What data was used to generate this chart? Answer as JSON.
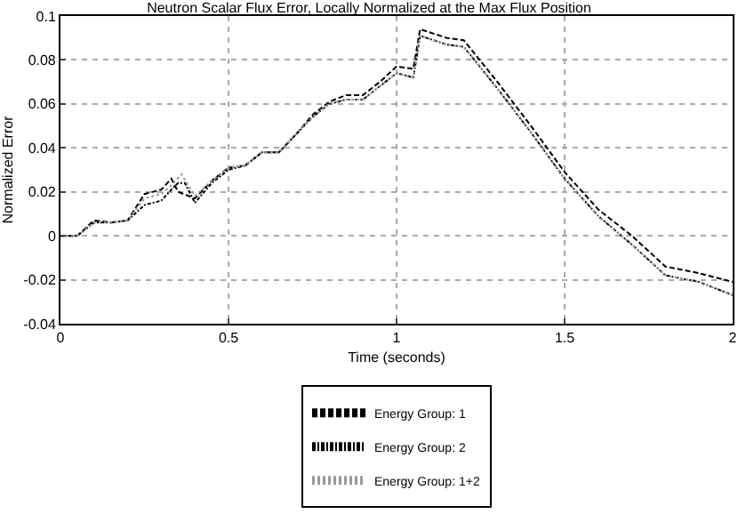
{
  "chart_data": {
    "type": "line",
    "title": "Neutron Scalar Flux Error, Locally Normalized at the Max Flux Position",
    "xlabel": "Time (seconds)",
    "ylabel": "Normalized Error",
    "xlim": [
      0,
      2
    ],
    "xticks": [
      0,
      0.5,
      1,
      1.5,
      2
    ],
    "ylim": [
      -0.04,
      0.1
    ],
    "yticks": [
      -0.04,
      -0.02,
      0,
      0.02,
      0.04,
      0.06,
      0.08,
      0.1
    ],
    "grid": true,
    "legend": "bottom",
    "marker": "none",
    "series": [
      {
        "name": "Energy Group: 1",
        "color": "#000000",
        "line_style": "dashed",
        "x": [
          0,
          0.05,
          0.1,
          0.15,
          0.2,
          0.25,
          0.3,
          0.33,
          0.35,
          0.4,
          0.45,
          0.5,
          0.55,
          0.6,
          0.65,
          0.7,
          0.75,
          0.8,
          0.85,
          0.9,
          0.95,
          1.0,
          1.05,
          1.07,
          1.15,
          1.2,
          1.3,
          1.4,
          1.5,
          1.6,
          1.7,
          1.8,
          1.9,
          2.0
        ],
        "values": [
          0,
          0,
          0.007,
          0.006,
          0.007,
          0.019,
          0.021,
          0.026,
          0.02,
          0.017,
          0.025,
          0.031,
          0.032,
          0.038,
          0.038,
          0.046,
          0.055,
          0.061,
          0.064,
          0.064,
          0.07,
          0.077,
          0.076,
          0.094,
          0.09,
          0.089,
          0.07,
          0.05,
          0.029,
          0.012,
          0,
          -0.014,
          -0.017,
          -0.021
        ]
      },
      {
        "name": "Energy Group: 2",
        "color": "#000000",
        "line_style": "dashed",
        "x": [
          0,
          0.05,
          0.1,
          0.15,
          0.2,
          0.25,
          0.3,
          0.33,
          0.35,
          0.37,
          0.4,
          0.45,
          0.5,
          0.55,
          0.6,
          0.65,
          0.7,
          0.75,
          0.8,
          0.85,
          0.9,
          0.95,
          1.0,
          1.05,
          1.07,
          1.15,
          1.2,
          1.3,
          1.4,
          1.5,
          1.6,
          1.7,
          1.8,
          1.9,
          2.0
        ],
        "values": [
          0,
          0,
          0.006,
          0.006,
          0.007,
          0.014,
          0.016,
          0.021,
          0.024,
          0.024,
          0.015,
          0.024,
          0.03,
          0.032,
          0.038,
          0.038,
          0.046,
          0.054,
          0.06,
          0.062,
          0.062,
          0.068,
          0.074,
          0.072,
          0.091,
          0.087,
          0.086,
          0.067,
          0.047,
          0.026,
          0.009,
          -0.004,
          -0.018,
          -0.021,
          -0.027
        ]
      },
      {
        "name": "Energy Group: 1+2",
        "color": "#999999",
        "line_style": "dotted",
        "x": [
          0,
          0.05,
          0.1,
          0.15,
          0.2,
          0.25,
          0.3,
          0.33,
          0.36,
          0.4,
          0.45,
          0.5,
          0.55,
          0.6,
          0.65,
          0.7,
          0.75,
          0.8,
          0.85,
          0.9,
          0.95,
          1.0,
          1.05,
          1.07,
          1.15,
          1.2,
          1.3,
          1.4,
          1.5,
          1.6,
          1.7,
          1.8,
          1.9,
          2.0
        ],
        "values": [
          0,
          0,
          0.006,
          0.006,
          0.007,
          0.017,
          0.019,
          0.023,
          0.028,
          0.018,
          0.025,
          0.031,
          0.032,
          0.038,
          0.038,
          0.046,
          0.054,
          0.06,
          0.062,
          0.062,
          0.068,
          0.074,
          0.072,
          0.091,
          0.087,
          0.086,
          0.067,
          0.047,
          0.026,
          0.009,
          -0.004,
          -0.018,
          -0.021,
          -0.027
        ]
      }
    ]
  }
}
